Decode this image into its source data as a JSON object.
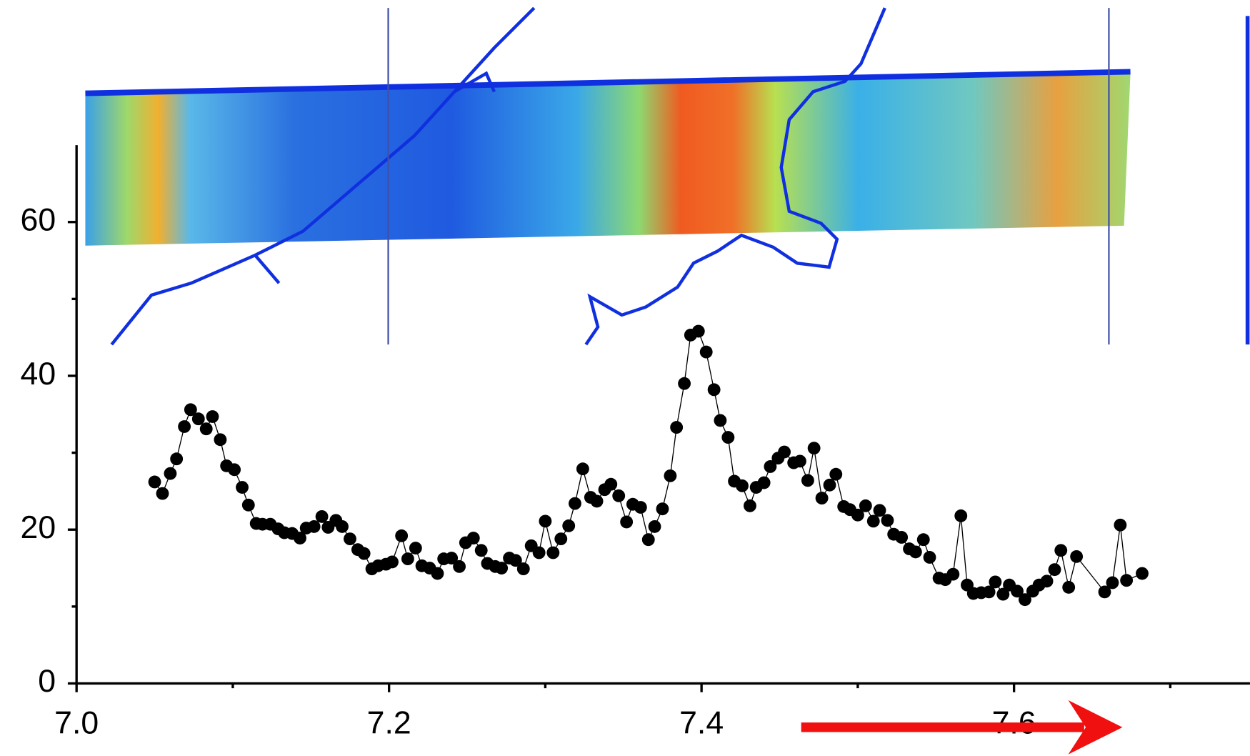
{
  "chart_data": {
    "type": "line",
    "x": [
      7.05,
      7.055,
      7.06,
      7.064,
      7.069,
      7.073,
      7.078,
      7.083,
      7.087,
      7.092,
      7.096,
      7.101,
      7.106,
      7.11,
      7.115,
      7.119,
      7.124,
      7.129,
      7.133,
      7.138,
      7.143,
      7.147,
      7.152,
      7.157,
      7.161,
      7.166,
      7.17,
      7.175,
      7.18,
      7.184,
      7.189,
      7.193,
      7.198,
      7.202,
      7.208,
      7.212,
      7.217,
      7.221,
      7.226,
      7.231,
      7.235,
      7.24,
      7.245,
      7.249,
      7.254,
      7.259,
      7.263,
      7.268,
      7.272,
      7.277,
      7.281,
      7.286,
      7.291,
      7.296,
      7.3,
      7.305,
      7.31,
      7.315,
      7.319,
      7.324,
      7.329,
      7.333,
      7.338,
      7.342,
      7.347,
      7.352,
      7.356,
      7.361,
      7.366,
      7.37,
      7.375,
      7.38,
      7.384,
      7.389,
      7.393,
      7.398,
      7.403,
      7.408,
      7.412,
      7.417,
      7.421,
      7.426,
      7.431,
      7.435,
      7.44,
      7.444,
      7.449,
      7.453,
      7.459,
      7.463,
      7.468,
      7.472,
      7.477,
      7.482,
      7.486,
      7.491,
      7.495,
      7.5,
      7.505,
      7.51,
      7.514,
      7.519,
      7.523,
      7.528,
      7.533,
      7.537,
      7.542,
      7.546,
      7.552,
      7.556,
      7.561,
      7.566,
      7.57,
      7.574,
      7.579,
      7.584,
      7.588,
      7.593,
      7.597,
      7.602,
      7.607,
      7.612,
      7.616,
      7.621,
      7.626,
      7.63,
      7.635,
      7.64,
      7.658,
      7.663,
      7.668,
      7.672,
      7.682
    ],
    "values": [
      26.2,
      24.7,
      27.3,
      29.2,
      33.4,
      35.6,
      34.4,
      33.1,
      34.7,
      31.7,
      28.3,
      27.8,
      25.5,
      23.2,
      20.8,
      20.7,
      20.7,
      20.1,
      19.6,
      19.5,
      18.9,
      20.2,
      20.4,
      21.7,
      20.3,
      21.2,
      20.4,
      18.8,
      17.4,
      16.9,
      14.9,
      15.3,
      15.5,
      15.8,
      19.2,
      16.2,
      17.6,
      15.3,
      15.0,
      14.3,
      16.2,
      16.3,
      15.2,
      18.3,
      18.9,
      17.3,
      15.6,
      15.2,
      15.0,
      16.3,
      16.0,
      14.9,
      17.9,
      17.0,
      21.1,
      17.0,
      18.8,
      20.5,
      23.4,
      27.9,
      24.2,
      23.7,
      25.2,
      25.9,
      24.4,
      21.0,
      23.3,
      22.9,
      18.7,
      20.4,
      22.7,
      27.0,
      33.3,
      39.0,
      45.3,
      45.8,
      43.1,
      38.2,
      34.2,
      32.0,
      26.3,
      25.7,
      23.1,
      25.5,
      26.1,
      28.2,
      29.3,
      30.1,
      28.7,
      28.9,
      26.4,
      30.6,
      24.1,
      25.8,
      27.2,
      23.0,
      22.6,
      21.9,
      23.1,
      21.1,
      22.5,
      21.2,
      19.4,
      19.0,
      17.5,
      17.1,
      18.7,
      16.4,
      13.7,
      13.5,
      14.2,
      21.8,
      12.8,
      11.7,
      11.8,
      11.9,
      13.2,
      11.6,
      12.8,
      12.0,
      10.9,
      12.0,
      12.8,
      13.3,
      14.8,
      17.3,
      12.5,
      16.5,
      11.9,
      13.1,
      20.6,
      13.4,
      14.3
    ],
    "color": "#000000",
    "xlim": [
      7.0,
      7.75
    ],
    "xticks": [
      {
        "value": 7.0,
        "label": "7.0"
      },
      7.2,
      7.4,
      7.6
    ],
    "xminorticks": [
      7.1,
      7.3,
      7.5,
      7.7
    ],
    "ylim": [
      0,
      70
    ],
    "yticks": [
      0,
      20,
      40,
      60
    ],
    "yminorticks": [
      10,
      30,
      50
    ]
  }
}
